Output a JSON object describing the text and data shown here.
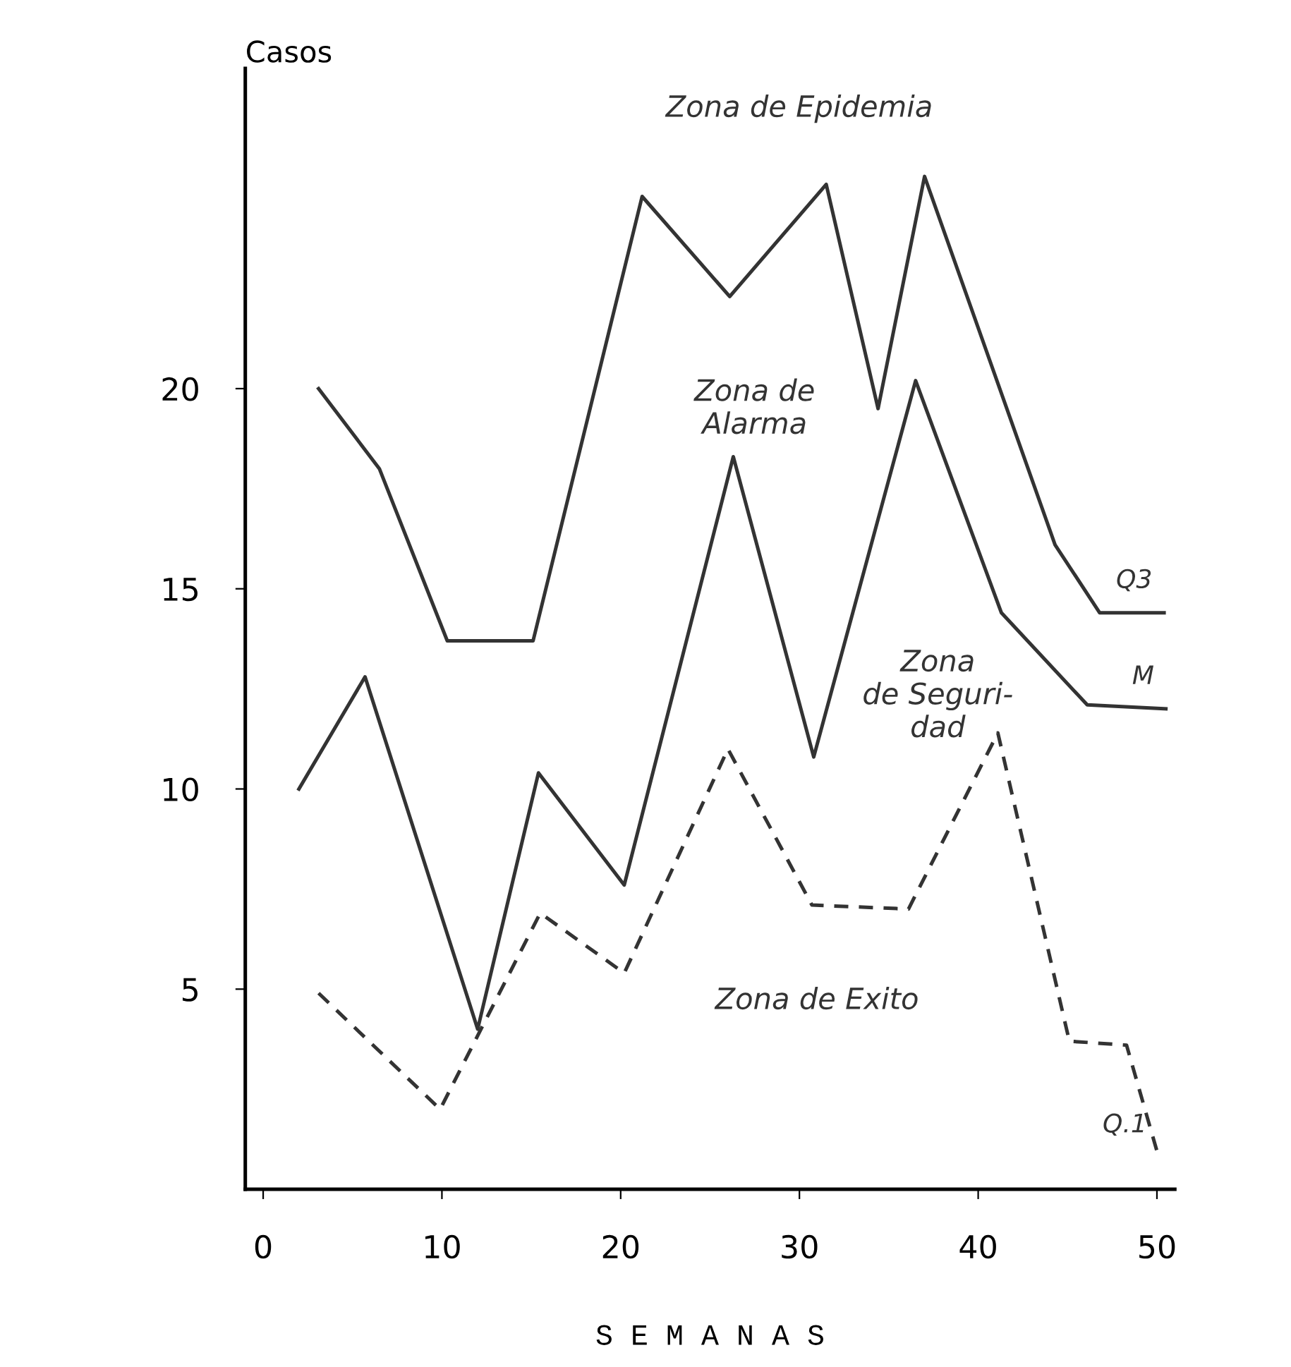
{
  "chart_data": {
    "type": "line",
    "xlabel": "S E M A N A S",
    "ylabel": "Casos",
    "xlim": [
      -1,
      51
    ],
    "ylim": [
      0,
      28
    ],
    "xticks": [
      0,
      10,
      20,
      30,
      40,
      50
    ],
    "yticks": [
      5,
      10,
      15,
      20
    ],
    "grid": false,
    "legend": false,
    "marker": "none",
    "series": [
      {
        "name": "Q3",
        "color": "#333333",
        "line_style": "solid",
        "x": [
          3.1,
          6.5,
          10.3,
          15.1,
          21.2,
          26.1,
          31.5,
          34.4,
          37.0,
          44.3,
          46.8,
          50.4
        ],
        "values": [
          20.0,
          18.0,
          13.7,
          13.7,
          24.8,
          22.3,
          25.1,
          19.5,
          25.3,
          16.1,
          14.4,
          14.4
        ]
      },
      {
        "name": "M",
        "color": "#333333",
        "line_style": "solid",
        "x": [
          2.0,
          5.7,
          12.0,
          15.4,
          20.2,
          26.3,
          30.8,
          36.5,
          41.3,
          46.1,
          50.5
        ],
        "values": [
          10.0,
          12.8,
          4.0,
          10.4,
          7.6,
          18.3,
          10.8,
          20.2,
          14.4,
          12.1,
          12.0
        ]
      },
      {
        "name": "Q.1",
        "color": "#333333",
        "line_style": "dashed",
        "x": [
          3.1,
          9.9,
          15.5,
          20.2,
          26.0,
          30.7,
          36.1,
          41.1,
          45.1,
          48.3,
          50.1
        ],
        "values": [
          4.9,
          2.0,
          6.9,
          5.4,
          11.0,
          7.1,
          7.0,
          11.4,
          3.7,
          3.6,
          0.8
        ]
      }
    ],
    "annotations": [
      "Zona de Epidemia",
      "Zona de\nAlarma",
      "Zona\nde Seguri-\ndad",
      "Zona de Exito"
    ]
  }
}
